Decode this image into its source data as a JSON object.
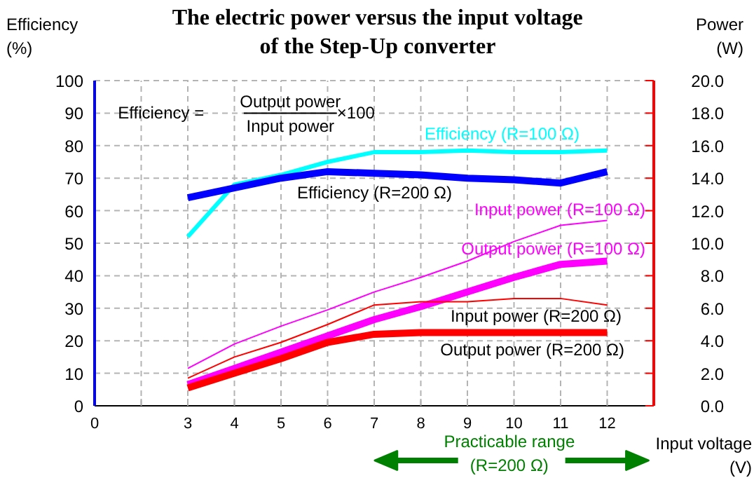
{
  "chart_data": {
    "type": "line",
    "title": "The electric power versus the input voltage\nof the Step-Up converter",
    "xlabel": "Input voltage (V)",
    "ylabel": "Efficiency (%)",
    "y2label": "Power (W)",
    "categories": [
      "0",
      null,
      "3",
      "4",
      "5",
      "6",
      "7",
      "8",
      "9",
      "10",
      "11",
      "12"
    ],
    "ylim": [
      0,
      100
    ],
    "yticks": [
      0,
      10,
      20,
      30,
      40,
      50,
      60,
      70,
      80,
      90,
      100
    ],
    "y2lim": [
      0,
      20
    ],
    "y2ticks": [
      {
        "value": 0,
        "label": "0.0"
      },
      {
        "value": 2,
        "label": "2.0"
      },
      {
        "value": 4,
        "label": "4.0"
      },
      {
        "value": 6,
        "label": "6.0"
      },
      {
        "value": 8,
        "label": "8.0"
      },
      {
        "value": 10,
        "label": "10.0"
      },
      {
        "value": 12,
        "label": "12.0"
      },
      {
        "value": 14,
        "label": "14.0"
      },
      {
        "value": 16,
        "label": "16.0"
      },
      {
        "value": 18,
        "label": "18.0"
      },
      {
        "value": 20,
        "label": "20.0"
      }
    ],
    "grid": true,
    "line_style": "solid",
    "series": [
      {
        "name": "Efficiency (R=100 Ω)",
        "color": "#00ffff",
        "values": [
          null,
          null,
          52,
          68,
          71,
          75,
          78,
          78,
          78.5,
          78,
          78,
          78.5
        ]
      },
      {
        "name": "Efficiency (R=200 Ω)",
        "color": "#0000ff",
        "values": [
          null,
          null,
          64,
          67,
          70,
          72,
          71.5,
          71,
          70,
          69.5,
          68.5,
          72
        ]
      },
      {
        "name": "Input power (R=100 Ω)",
        "color": "#ff00ff",
        "axis": "y2",
        "values": [
          null,
          null,
          2.3,
          3.8,
          4.9,
          5.9,
          7.0,
          7.9,
          8.9,
          10.1,
          11.1,
          11.4
        ]
      },
      {
        "name": "Output power (R=100 Ω)",
        "color": "#ff00ff",
        "axis": "y2",
        "values": [
          null,
          null,
          1.3,
          2.3,
          3.3,
          4.3,
          5.3,
          6.1,
          7.0,
          7.9,
          8.7,
          8.9
        ]
      },
      {
        "name": "Input power (R=200 Ω)",
        "color": "#ff0000",
        "axis": "y2",
        "values": [
          null,
          null,
          1.7,
          3.0,
          3.9,
          5.0,
          6.2,
          6.4,
          6.4,
          6.6,
          6.6,
          6.2
        ]
      },
      {
        "name": "Output power (R=200 Ω)",
        "color": "#ff0000",
        "axis": "y2",
        "values": [
          null,
          null,
          1.1,
          2.0,
          2.9,
          3.9,
          4.4,
          4.5,
          4.5,
          4.5,
          4.5,
          4.5
        ]
      }
    ],
    "annotations": [
      "Efficiency =",
      "Output power",
      "Input power",
      "×100",
      "Practicable range\n(R=200 Ω)"
    ]
  }
}
